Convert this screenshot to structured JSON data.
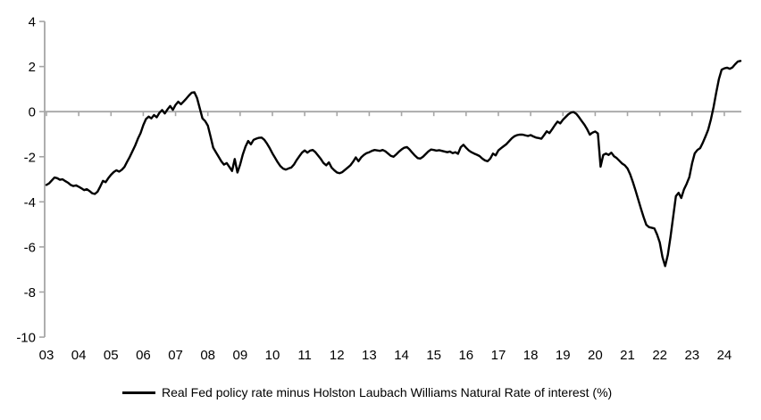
{
  "legend": {
    "label": "Real Fed policy rate minus Holston Laubach Williams Natural Rate of interest (%)"
  },
  "chart_data": {
    "type": "line",
    "title": "",
    "series_name": "Real Fed policy rate minus Holston Laubach Williams Natural Rate of interest (%)",
    "line_color": "#000000",
    "axis_color": "#A6A6A6",
    "background": "#FFFFFF",
    "ylim": [
      -10,
      4
    ],
    "y_ticks": [
      4,
      2,
      0,
      -2,
      -4,
      -6,
      -8,
      -10
    ],
    "x_start_year": 2003,
    "x_tick_labels": [
      "03",
      "04",
      "05",
      "06",
      "07",
      "08",
      "09",
      "10",
      "11",
      "12",
      "13",
      "14",
      "15",
      "16",
      "17",
      "18",
      "19",
      "20",
      "21",
      "22",
      "23",
      "24"
    ],
    "frequency": "monthly",
    "zero_line": true,
    "grid": false,
    "legend_position": "bottom",
    "values": [
      -3.25,
      -3.18,
      -3.05,
      -2.92,
      -2.95,
      -3.02,
      -3.0,
      -3.08,
      -3.15,
      -3.25,
      -3.3,
      -3.27,
      -3.33,
      -3.4,
      -3.48,
      -3.44,
      -3.52,
      -3.62,
      -3.65,
      -3.55,
      -3.32,
      -3.07,
      -3.13,
      -2.95,
      -2.8,
      -2.68,
      -2.6,
      -2.66,
      -2.58,
      -2.45,
      -2.22,
      -2.0,
      -1.75,
      -1.5,
      -1.2,
      -0.95,
      -0.6,
      -0.33,
      -0.22,
      -0.3,
      -0.15,
      -0.25,
      -0.05,
      0.07,
      -0.08,
      0.1,
      0.25,
      0.08,
      0.3,
      0.44,
      0.33,
      0.45,
      0.58,
      0.72,
      0.84,
      0.86,
      0.6,
      0.15,
      -0.3,
      -0.42,
      -0.62,
      -1.1,
      -1.6,
      -1.8,
      -2.0,
      -2.2,
      -2.35,
      -2.28,
      -2.45,
      -2.63,
      -2.1,
      -2.7,
      -2.35,
      -1.9,
      -1.55,
      -1.3,
      -1.45,
      -1.25,
      -1.2,
      -1.16,
      -1.15,
      -1.25,
      -1.42,
      -1.62,
      -1.85,
      -2.05,
      -2.25,
      -2.42,
      -2.53,
      -2.57,
      -2.52,
      -2.48,
      -2.35,
      -2.15,
      -1.98,
      -1.82,
      -1.72,
      -1.82,
      -1.73,
      -1.7,
      -1.8,
      -1.95,
      -2.1,
      -2.28,
      -2.38,
      -2.25,
      -2.48,
      -2.6,
      -2.7,
      -2.73,
      -2.68,
      -2.58,
      -2.48,
      -2.38,
      -2.22,
      -2.03,
      -2.2,
      -2.03,
      -1.92,
      -1.84,
      -1.8,
      -1.74,
      -1.7,
      -1.72,
      -1.74,
      -1.7,
      -1.76,
      -1.86,
      -1.96,
      -2.0,
      -1.9,
      -1.78,
      -1.68,
      -1.6,
      -1.57,
      -1.68,
      -1.82,
      -1.95,
      -2.06,
      -2.08,
      -2.0,
      -1.88,
      -1.76,
      -1.68,
      -1.7,
      -1.73,
      -1.71,
      -1.74,
      -1.77,
      -1.8,
      -1.77,
      -1.84,
      -1.8,
      -1.87,
      -1.58,
      -1.47,
      -1.6,
      -1.72,
      -1.8,
      -1.86,
      -1.91,
      -1.97,
      -2.08,
      -2.16,
      -2.2,
      -2.08,
      -1.86,
      -1.94,
      -1.72,
      -1.62,
      -1.53,
      -1.44,
      -1.31,
      -1.18,
      -1.09,
      -1.04,
      -1.02,
      -1.02,
      -1.05,
      -1.08,
      -1.04,
      -1.1,
      -1.15,
      -1.17,
      -1.2,
      -1.04,
      -0.87,
      -0.95,
      -0.78,
      -0.6,
      -0.44,
      -0.52,
      -0.36,
      -0.24,
      -0.12,
      -0.04,
      -0.02,
      -0.1,
      -0.25,
      -0.42,
      -0.58,
      -0.78,
      -1.02,
      -0.93,
      -0.88,
      -0.97,
      -2.44,
      -1.92,
      -1.86,
      -1.92,
      -1.82,
      -1.98,
      -2.06,
      -2.18,
      -2.3,
      -2.38,
      -2.52,
      -2.78,
      -3.12,
      -3.5,
      -3.9,
      -4.3,
      -4.68,
      -5.02,
      -5.12,
      -5.15,
      -5.18,
      -5.45,
      -5.8,
      -6.45,
      -6.85,
      -6.35,
      -5.55,
      -4.65,
      -3.75,
      -3.6,
      -3.83,
      -3.45,
      -3.2,
      -2.9,
      -2.3,
      -1.85,
      -1.7,
      -1.62,
      -1.38,
      -1.1,
      -0.8,
      -0.35,
      0.2,
      0.85,
      1.45,
      1.86,
      1.92,
      1.95,
      1.9,
      1.96,
      2.1,
      2.22,
      2.25
    ]
  }
}
